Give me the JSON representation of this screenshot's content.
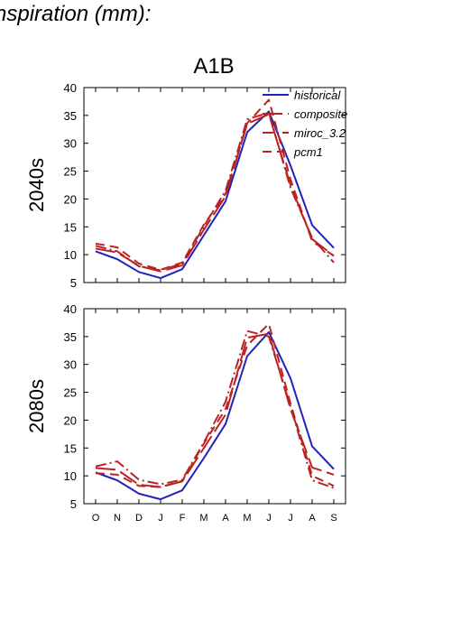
{
  "page_title": "nspiration (mm):",
  "colors": {
    "historical": "#2222bb",
    "future": "#bb2222",
    "axis": "#000000"
  },
  "chart_data": {
    "scenario": "A1B",
    "type": "line",
    "categories": [
      "O",
      "N",
      "D",
      "J",
      "F",
      "M",
      "A",
      "M",
      "J",
      "J",
      "A",
      "S"
    ],
    "ylim": [
      5,
      40
    ],
    "yticks": [
      5,
      10,
      15,
      20,
      25,
      30,
      35,
      40
    ],
    "legend": {
      "placement": "top-right",
      "entries": [
        "historical",
        "composite",
        "miroc_3.2",
        "pcm1"
      ]
    },
    "panels": [
      {
        "label": "2040s",
        "series": [
          {
            "name": "historical",
            "style": "solid",
            "color": "historical",
            "values": [
              10.6,
              9.2,
              6.9,
              5.8,
              7.4,
              13.5,
              19.6,
              32.0,
              35.7,
              26.0,
              15.3,
              11.2
            ]
          },
          {
            "name": "composite",
            "style": "long-dash",
            "color": "future",
            "values": [
              11.1,
              10.4,
              8.0,
              7.0,
              8.1,
              14.5,
              20.5,
              33.5,
              35.2,
              22.5,
              12.8,
              9.8
            ]
          },
          {
            "name": "miroc_3.2",
            "style": "dash-dot",
            "color": "future",
            "values": [
              11.6,
              10.6,
              7.9,
              7.2,
              8.4,
              15.1,
              21.5,
              34.3,
              35.5,
              22.0,
              13.0,
              8.6
            ]
          },
          {
            "name": "pcm1",
            "style": "dash",
            "color": "future",
            "values": [
              12.0,
              11.3,
              8.4,
              7.3,
              8.6,
              15.4,
              20.9,
              33.6,
              37.8,
              23.5,
              12.4,
              9.8
            ]
          }
        ]
      },
      {
        "label": "2080s",
        "series": [
          {
            "name": "historical",
            "style": "solid",
            "color": "historical",
            "values": [
              10.6,
              9.2,
              6.8,
              5.8,
              7.4,
              13.2,
              19.3,
              31.5,
              35.8,
              27.5,
              15.3,
              11.2
            ]
          },
          {
            "name": "composite",
            "style": "long-dash",
            "color": "future",
            "values": [
              11.4,
              11.1,
              8.4,
              8.0,
              9.0,
              15.0,
              21.0,
              34.8,
              35.5,
              22.0,
              11.5,
              10.2
            ]
          },
          {
            "name": "miroc_3.2",
            "style": "dash-dot",
            "color": "future",
            "values": [
              11.7,
              12.6,
              9.3,
              8.5,
              9.3,
              16.0,
              23.3,
              36.0,
              35.0,
              22.5,
              9.2,
              7.8
            ]
          },
          {
            "name": "pcm1",
            "style": "dash",
            "color": "future",
            "values": [
              10.5,
              10.2,
              8.2,
              8.0,
              9.1,
              15.8,
              22.0,
              33.4,
              37.3,
              23.0,
              10.0,
              8.2
            ]
          }
        ]
      }
    ]
  }
}
